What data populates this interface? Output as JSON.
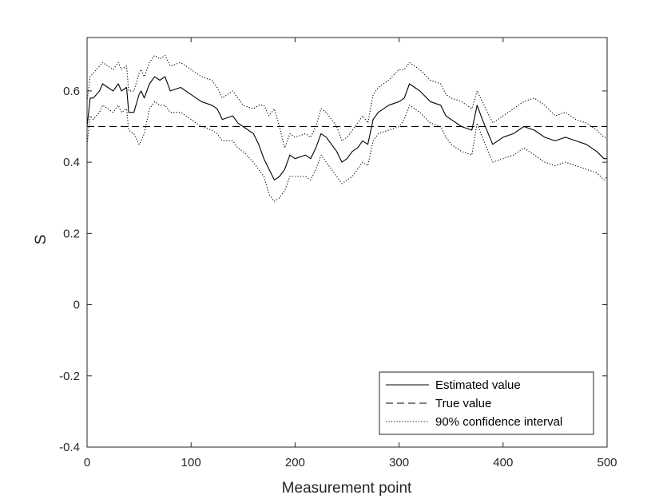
{
  "chart_data": {
    "type": "line",
    "title": "",
    "xlabel": "Measurement point",
    "ylabel": "S",
    "xlim": [
      0,
      500
    ],
    "ylim": [
      -0.4,
      0.75
    ],
    "xticks": [
      0,
      100,
      200,
      300,
      400,
      500
    ],
    "yticks": [
      -0.4,
      -0.2,
      0,
      0.2,
      0.4,
      0.6
    ],
    "xtick_labels": [
      "0",
      "100",
      "200",
      "300",
      "400",
      "500"
    ],
    "ytick_labels": [
      "-0.4",
      "-0.2",
      "0",
      "0.2",
      "0.4",
      "0.6"
    ],
    "grid": false,
    "legend_position": "bottom-right",
    "series": [
      {
        "name": "Estimated value",
        "style": "solid",
        "color": "#000000",
        "x": [
          0,
          3,
          6,
          12,
          15,
          20,
          25,
          30,
          33,
          38,
          40,
          45,
          50,
          52,
          55,
          60,
          65,
          70,
          75,
          80,
          90,
          100,
          110,
          120,
          125,
          130,
          140,
          145,
          150,
          160,
          165,
          170,
          175,
          180,
          185,
          190,
          195,
          200,
          210,
          215,
          220,
          225,
          230,
          240,
          245,
          250,
          255,
          260,
          265,
          270,
          275,
          280,
          290,
          300,
          305,
          310,
          315,
          320,
          330,
          340,
          345,
          350,
          360,
          370,
          375,
          380,
          390,
          400,
          410,
          420,
          430,
          440,
          450,
          460,
          470,
          480,
          490,
          497,
          500
        ],
        "y": [
          0.5,
          0.58,
          0.58,
          0.6,
          0.62,
          0.61,
          0.6,
          0.62,
          0.6,
          0.61,
          0.54,
          0.54,
          0.59,
          0.6,
          0.58,
          0.62,
          0.64,
          0.63,
          0.64,
          0.6,
          0.61,
          0.59,
          0.57,
          0.56,
          0.55,
          0.52,
          0.53,
          0.51,
          0.5,
          0.48,
          0.45,
          0.41,
          0.38,
          0.35,
          0.36,
          0.38,
          0.42,
          0.41,
          0.42,
          0.41,
          0.44,
          0.48,
          0.47,
          0.43,
          0.4,
          0.41,
          0.43,
          0.44,
          0.46,
          0.45,
          0.52,
          0.54,
          0.56,
          0.57,
          0.58,
          0.62,
          0.61,
          0.6,
          0.57,
          0.56,
          0.53,
          0.52,
          0.5,
          0.49,
          0.56,
          0.52,
          0.45,
          0.47,
          0.48,
          0.5,
          0.49,
          0.47,
          0.46,
          0.47,
          0.46,
          0.45,
          0.43,
          0.41,
          0.41
        ]
      },
      {
        "name": "True value",
        "style": "dashed",
        "color": "#000000",
        "x": [
          0,
          500
        ],
        "y": [
          0.5,
          0.5
        ]
      },
      {
        "name": "90% confidence interval",
        "style": "dotted",
        "color": "#000000",
        "x": [
          0,
          3,
          6,
          12,
          15,
          20,
          25,
          30,
          33,
          38,
          40,
          45,
          50,
          52,
          55,
          60,
          65,
          70,
          75,
          80,
          90,
          100,
          110,
          120,
          125,
          130,
          140,
          145,
          150,
          160,
          165,
          170,
          175,
          180,
          185,
          190,
          195,
          200,
          210,
          215,
          220,
          225,
          230,
          240,
          245,
          250,
          255,
          260,
          265,
          270,
          275,
          280,
          290,
          300,
          305,
          310,
          315,
          320,
          330,
          340,
          345,
          350,
          360,
          370,
          375,
          380,
          390,
          400,
          410,
          420,
          430,
          440,
          450,
          460,
          470,
          480,
          490,
          497,
          500
        ],
        "y": [
          0.57,
          0.64,
          0.65,
          0.67,
          0.68,
          0.67,
          0.66,
          0.68,
          0.66,
          0.67,
          0.6,
          0.6,
          0.65,
          0.66,
          0.64,
          0.68,
          0.7,
          0.69,
          0.7,
          0.67,
          0.68,
          0.66,
          0.64,
          0.63,
          0.61,
          0.58,
          0.6,
          0.58,
          0.56,
          0.55,
          0.56,
          0.56,
          0.53,
          0.55,
          0.5,
          0.44,
          0.48,
          0.47,
          0.48,
          0.47,
          0.5,
          0.55,
          0.54,
          0.5,
          0.46,
          0.47,
          0.49,
          0.51,
          0.53,
          0.51,
          0.59,
          0.61,
          0.63,
          0.66,
          0.66,
          0.68,
          0.67,
          0.66,
          0.63,
          0.62,
          0.59,
          0.58,
          0.57,
          0.55,
          0.6,
          0.57,
          0.51,
          0.53,
          0.55,
          0.57,
          0.58,
          0.56,
          0.53,
          0.54,
          0.52,
          0.51,
          0.49,
          0.47,
          0.47
        ],
        "y_lower": [
          0.45,
          0.53,
          0.52,
          0.54,
          0.56,
          0.55,
          0.54,
          0.56,
          0.54,
          0.55,
          0.49,
          0.48,
          0.45,
          0.46,
          0.48,
          0.55,
          0.57,
          0.56,
          0.56,
          0.54,
          0.54,
          0.52,
          0.5,
          0.49,
          0.48,
          0.46,
          0.46,
          0.44,
          0.43,
          0.4,
          0.38,
          0.36,
          0.31,
          0.29,
          0.3,
          0.32,
          0.36,
          0.36,
          0.36,
          0.35,
          0.38,
          0.42,
          0.4,
          0.36,
          0.34,
          0.35,
          0.36,
          0.38,
          0.4,
          0.39,
          0.46,
          0.48,
          0.49,
          0.5,
          0.52,
          0.56,
          0.55,
          0.54,
          0.51,
          0.5,
          0.47,
          0.45,
          0.43,
          0.42,
          0.51,
          0.47,
          0.4,
          0.41,
          0.42,
          0.44,
          0.42,
          0.4,
          0.39,
          0.4,
          0.39,
          0.38,
          0.37,
          0.35,
          0.36
        ]
      }
    ]
  },
  "legend": {
    "items": [
      {
        "label": "Estimated value",
        "style": "solid"
      },
      {
        "label": "True value",
        "style": "dashed"
      },
      {
        "label": "90% confidence interval",
        "style": "dotted"
      }
    ]
  },
  "axes": {
    "xlabel": "Measurement point",
    "ylabel": "S"
  }
}
